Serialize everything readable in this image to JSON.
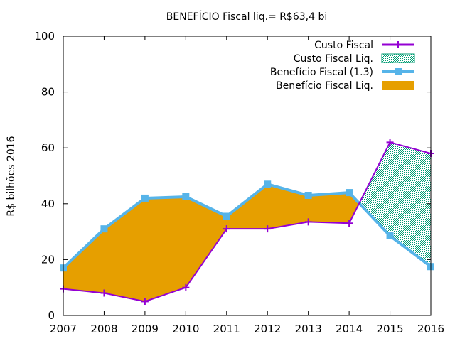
{
  "chart_data": {
    "type": "area",
    "title": "BENEFÍCIO Fiscal liq.= R$63,4 bi",
    "xlabel": "",
    "ylabel": "R$ bilhões 2016",
    "xlim": [
      2007,
      2016
    ],
    "ylim": [
      0,
      100
    ],
    "x": [
      2007,
      2008,
      2009,
      2010,
      2011,
      2012,
      2013,
      2014,
      2015,
      2016
    ],
    "x_tick_labels": [
      "2007",
      "2008",
      "2009",
      "2010",
      "2011",
      "2012",
      "2013",
      "2014",
      "2015",
      "2016"
    ],
    "y_ticks": [
      0,
      20,
      40,
      60,
      80,
      100
    ],
    "y_tick_labels": [
      "0",
      "20",
      "40",
      "60",
      "80",
      "100"
    ],
    "grid": false,
    "legend_position": "top-right",
    "series": [
      {
        "name": "Custo Fiscal",
        "style": "line-points",
        "color": "#9400d3",
        "values": [
          9.5,
          8.0,
          5.0,
          10.0,
          31.0,
          31.0,
          33.5,
          33.0,
          62.0,
          58.0
        ]
      },
      {
        "name": "Custo Fiscal Liq.",
        "style": "hatched-fill",
        "color": "#009e73"
      },
      {
        "name": "Benefício Fiscal (1.3)",
        "style": "line-points",
        "color": "#56b4e9",
        "values": [
          17.0,
          31.0,
          42.0,
          42.5,
          35.5,
          47.0,
          43.0,
          44.0,
          28.5,
          17.5
        ]
      },
      {
        "name": "Benefício Fiscal Liq.",
        "style": "solid-fill",
        "color": "#e69f00"
      }
    ]
  }
}
